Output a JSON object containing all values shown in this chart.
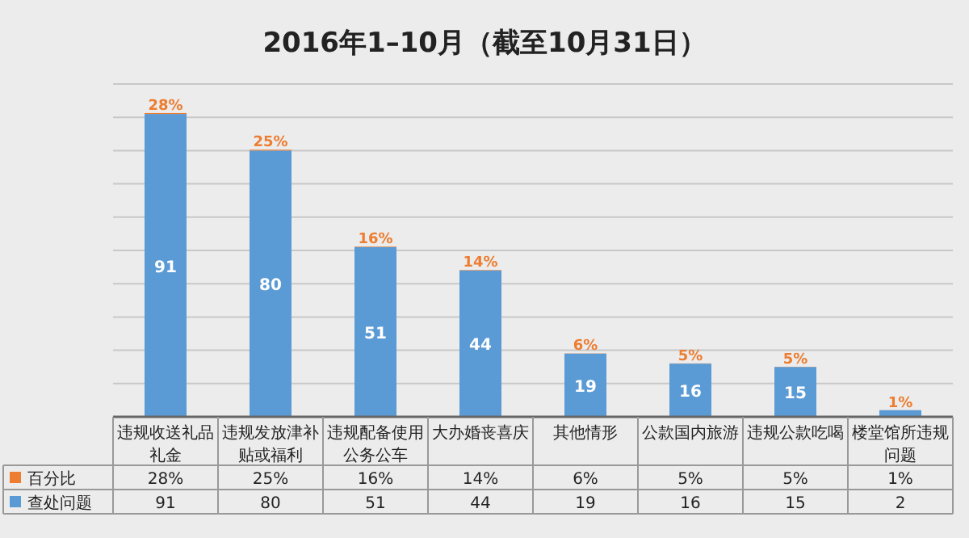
{
  "chart_data": {
    "type": "bar",
    "title": "2016年1–10月（截至10月31日）",
    "categories": [
      "违规收送礼品礼金",
      "违规发放津补贴或福利",
      "违规配备使用公务公车",
      "大办婚丧喜庆",
      "其他情形",
      "公款国内旅游",
      "违规公款吃喝",
      "楼堂馆所违规问题"
    ],
    "stacked": true,
    "ylim": [
      0,
      100
    ],
    "yticks": [
      {
        "value": 0,
        "label": null
      },
      {
        "value": 10,
        "label": null
      },
      {
        "value": 20,
        "label": null
      },
      {
        "value": 30,
        "label": null
      },
      {
        "value": 40,
        "label": null
      },
      {
        "value": 50,
        "label": null
      },
      {
        "value": 60,
        "label": null
      },
      {
        "value": 70,
        "label": null
      },
      {
        "value": 80,
        "label": null
      },
      {
        "value": 90,
        "label": null
      },
      {
        "value": 100,
        "label": null
      }
    ],
    "grid": "y",
    "legend": "bottom",
    "series": [
      {
        "name": "查处问题",
        "color": "#5b9bd5",
        "values": [
          91,
          80,
          51,
          44,
          19,
          16,
          15,
          2
        ],
        "value_labels": [
          "91",
          "80",
          "51",
          "44",
          "19",
          "16",
          "15",
          "2"
        ]
      },
      {
        "name": "百分比",
        "color": "#ed7d31",
        "values": [
          0.28,
          0.25,
          0.16,
          0.14,
          0.06,
          0.05,
          0.05,
          0.01
        ],
        "value_labels": [
          "28%",
          "25%",
          "16%",
          "14%",
          "6%",
          "5%",
          "5%",
          "1%"
        ]
      }
    ]
  }
}
